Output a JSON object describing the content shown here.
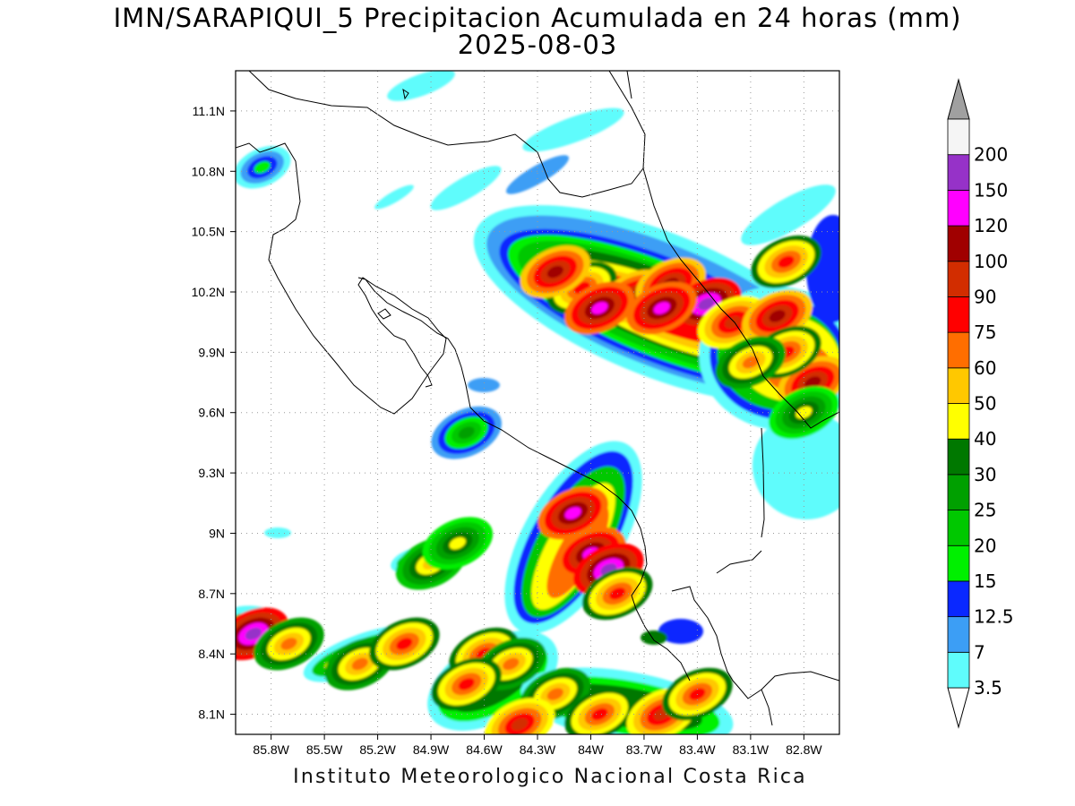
{
  "title": {
    "line1": "IMN/SARAPIQUI_5 Precipitacion Acumulada en 24 horas (mm)",
    "line2": "2025-08-03"
  },
  "footer": "Instituto Meteorologico Nacional Costa Rica",
  "map": {
    "lon_range": [
      -86.0,
      -82.6
    ],
    "lat_range": [
      8.0,
      11.3
    ],
    "lat_ticks": [
      {
        "value": 8.1,
        "label": "8.1N"
      },
      {
        "value": 8.4,
        "label": "8.4N"
      },
      {
        "value": 8.7,
        "label": "8.7N"
      },
      {
        "value": 9.0,
        "label": "9N"
      },
      {
        "value": 9.3,
        "label": "9.3N"
      },
      {
        "value": 9.6,
        "label": "9.6N"
      },
      {
        "value": 9.9,
        "label": "9.9N"
      },
      {
        "value": 10.2,
        "label": "10.2N"
      },
      {
        "value": 10.5,
        "label": "10.5N"
      },
      {
        "value": 10.8,
        "label": "10.8N"
      },
      {
        "value": 11.1,
        "label": "11.1N"
      }
    ],
    "lon_ticks": [
      {
        "value": -85.8,
        "label": "85.8W"
      },
      {
        "value": -85.5,
        "label": "85.5W"
      },
      {
        "value": -85.2,
        "label": "85.2W"
      },
      {
        "value": -84.9,
        "label": "84.9W"
      },
      {
        "value": -84.6,
        "label": "84.6W"
      },
      {
        "value": -84.3,
        "label": "84.3W"
      },
      {
        "value": -84.0,
        "label": "84W"
      },
      {
        "value": -83.7,
        "label": "83.7W"
      },
      {
        "value": -83.4,
        "label": "83.4W"
      },
      {
        "value": -83.1,
        "label": "83.1W"
      },
      {
        "value": -82.8,
        "label": "82.8W"
      }
    ],
    "grid": "dotted"
  },
  "colorbar": {
    "levels": [
      {
        "label": "3.5",
        "color": "#5ffcfc"
      },
      {
        "label": "7",
        "color": "#3c9ef5"
      },
      {
        "label": "12.5",
        "color": "#0a28ff"
      },
      {
        "label": "15",
        "color": "#00f000"
      },
      {
        "label": "20",
        "color": "#00c800"
      },
      {
        "label": "25",
        "color": "#00a000"
      },
      {
        "label": "30",
        "color": "#007800"
      },
      {
        "label": "40",
        "color": "#ffff00"
      },
      {
        "label": "50",
        "color": "#ffc800"
      },
      {
        "label": "60",
        "color": "#ff6e00"
      },
      {
        "label": "75",
        "color": "#ff0000"
      },
      {
        "label": "90",
        "color": "#d22d00"
      },
      {
        "label": "100",
        "color": "#a00000"
      },
      {
        "label": "120",
        "color": "#ff00ff"
      },
      {
        "label": "150",
        "color": "#9632c8"
      },
      {
        "label": "200",
        "color": "#f5f5f5"
      }
    ],
    "top_arrow_color": "#a0a0a0",
    "bottom_arrow_color": "#ffffff"
  },
  "rain_cells": [
    {
      "lon": -84.05,
      "lat": 10.22,
      "level": 10,
      "note_peak": true
    },
    {
      "lon": -83.75,
      "lat": 10.18,
      "level": 12
    },
    {
      "lon": -83.55,
      "lat": 10.24,
      "level": 12
    },
    {
      "lon": -83.35,
      "lat": 10.14,
      "level": 14
    },
    {
      "lon": -84.2,
      "lat": 10.3,
      "level": 12
    },
    {
      "lon": -83.95,
      "lat": 10.12,
      "level": 13
    },
    {
      "lon": -83.6,
      "lat": 10.12,
      "level": 13
    },
    {
      "lon": -83.2,
      "lat": 10.05,
      "level": 11
    },
    {
      "lon": -82.95,
      "lat": 10.08,
      "level": 12
    },
    {
      "lon": -82.75,
      "lat": 9.75,
      "level": 12
    },
    {
      "lon": -82.9,
      "lat": 9.9,
      "level": 10
    },
    {
      "lon": -83.1,
      "lat": 9.85,
      "level": 9
    },
    {
      "lon": -82.9,
      "lat": 10.35,
      "level": 10
    },
    {
      "lon": -82.8,
      "lat": 9.6,
      "level": 7
    },
    {
      "lon": -84.1,
      "lat": 9.1,
      "level": 13
    },
    {
      "lon": -84.0,
      "lat": 8.9,
      "level": 13
    },
    {
      "lon": -83.9,
      "lat": 8.82,
      "level": 14
    },
    {
      "lon": -83.85,
      "lat": 8.7,
      "level": 10
    },
    {
      "lon": -85.9,
      "lat": 8.5,
      "level": 14
    },
    {
      "lon": -85.7,
      "lat": 8.45,
      "level": 9
    },
    {
      "lon": -85.3,
      "lat": 8.35,
      "level": 9
    },
    {
      "lon": -85.05,
      "lat": 8.45,
      "level": 10
    },
    {
      "lon": -84.9,
      "lat": 8.85,
      "level": 8
    },
    {
      "lon": -84.75,
      "lat": 8.95,
      "level": 7
    },
    {
      "lon": -84.6,
      "lat": 8.4,
      "level": 10
    },
    {
      "lon": -84.45,
      "lat": 8.35,
      "level": 9
    },
    {
      "lon": -84.7,
      "lat": 8.25,
      "level": 10
    },
    {
      "lon": -84.2,
      "lat": 8.2,
      "level": 9
    },
    {
      "lon": -83.95,
      "lat": 8.1,
      "level": 10
    },
    {
      "lon": -83.6,
      "lat": 8.1,
      "level": 11
    },
    {
      "lon": -83.4,
      "lat": 8.2,
      "level": 10
    },
    {
      "lon": -84.4,
      "lat": 8.05,
      "level": 11
    },
    {
      "lon": -84.7,
      "lat": 9.5,
      "level": 5
    },
    {
      "lon": -85.85,
      "lat": 10.82,
      "level": 3
    }
  ]
}
